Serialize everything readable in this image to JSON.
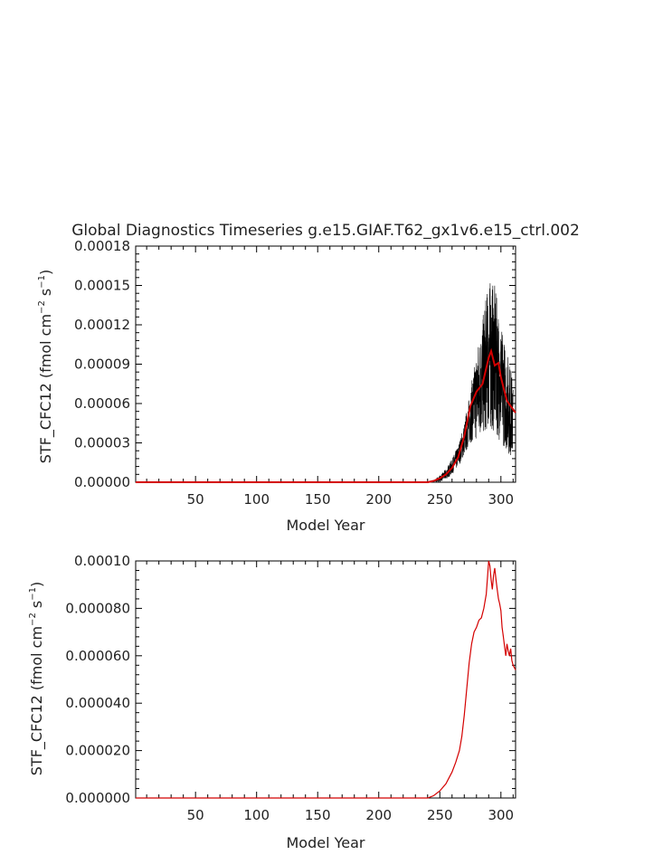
{
  "chart_data": [
    {
      "type": "line",
      "title": "Global Diagnostics Timeseries g.e15.GIAF.T62_gx1v6.e15_ctrl.002",
      "xlabel": "Model Year",
      "ylabel": {
        "base": "STF_CFC12 (fmol cm",
        "exp1": "−2",
        "mid": " s",
        "exp2": "−1",
        "close": ")"
      },
      "xlim": [
        1,
        312
      ],
      "ylim": [
        0,
        0.00018
      ],
      "xticks": [
        50,
        100,
        150,
        200,
        250,
        300
      ],
      "yticks": [
        "0.00000",
        "0.00003",
        "0.00006",
        "0.00009",
        "0.00012",
        "0.00015",
        "0.00018"
      ],
      "ytick_values": [
        0,
        3e-05,
        6e-05,
        9e-05,
        0.00012,
        0.00015,
        0.00018
      ],
      "grid": false,
      "series": [
        {
          "role": "monthly",
          "color": "#000000",
          "band_x": [
            240,
            245,
            250,
            255,
            260,
            265,
            270,
            275,
            280,
            285,
            290,
            295,
            300,
            305,
            310
          ],
          "band_low": [
            0,
            0,
            5e-07,
            2e-06,
            6e-06,
            1.2e-05,
            2e-05,
            3e-05,
            3.2e-05,
            3.5e-05,
            4e-05,
            3.8e-05,
            3e-05,
            2.4e-05,
            1.5e-05
          ],
          "band_high": [
            0,
            1.5e-06,
            5e-06,
            1e-05,
            1.8e-05,
            2.8e-05,
            4.5e-05,
            7e-05,
            0.0001,
            0.000125,
            0.000155,
            0.00015,
            0.00012,
            0.0001,
            8e-05
          ]
        },
        {
          "role": "annual-mean",
          "color": "#d40000",
          "x": [
            1,
            240,
            245,
            250,
            255,
            260,
            265,
            270,
            275,
            280,
            285,
            290,
            292,
            295,
            298,
            300,
            303,
            305,
            308,
            312
          ],
          "y": [
            0,
            0,
            1e-06,
            3e-06,
            6e-06,
            1.1e-05,
            1.9e-05,
            3.5e-05,
            5.8e-05,
            6.9e-05,
            7.5e-05,
            9.5e-05,
            0.0001,
            8.9e-05,
            9.1e-05,
            8e-05,
            6.9e-05,
            6.2e-05,
            5.8e-05,
            5.3e-05
          ]
        }
      ]
    },
    {
      "type": "line",
      "title": "",
      "xlabel": "Model Year",
      "ylabel": {
        "base": "STF_CFC12 (fmol cm",
        "exp1": "−2",
        "mid": " s",
        "exp2": "−1",
        "close": ")"
      },
      "xlim": [
        1,
        312
      ],
      "ylim": [
        0,
        0.0001
      ],
      "xticks": [
        50,
        100,
        150,
        200,
        250,
        300
      ],
      "yticks": [
        "0.000000",
        "0.000020",
        "0.000040",
        "0.000060",
        "0.000080",
        "0.00010"
      ],
      "ytick_values": [
        0,
        2e-05,
        4e-05,
        6e-05,
        8e-05,
        0.0001
      ],
      "grid": false,
      "series": [
        {
          "role": "annual-mean",
          "color": "#d40000",
          "x": [
            1,
            240,
            245,
            250,
            255,
            260,
            263,
            266,
            268,
            270,
            272,
            274,
            276,
            278,
            280,
            282,
            284,
            286,
            288,
            290,
            291,
            292,
            293,
            294,
            295,
            296,
            297,
            298,
            299,
            300,
            301,
            302,
            303,
            304,
            305,
            306,
            307,
            308,
            309,
            310,
            312
          ],
          "y": [
            0,
            0,
            1e-06,
            3e-06,
            6e-06,
            1.1e-05,
            1.5e-05,
            2e-05,
            2.6e-05,
            3.5e-05,
            4.6e-05,
            5.7e-05,
            6.5e-05,
            7e-05,
            7.2e-05,
            7.5e-05,
            7.6e-05,
            8e-05,
            8.6e-05,
            0.0001,
            9.8e-05,
            9.2e-05,
            8.8e-05,
            9.4e-05,
            9.7e-05,
            9.2e-05,
            8.8e-05,
            8.4e-05,
            8.2e-05,
            7.9e-05,
            7.2e-05,
            6.8e-05,
            6.4e-05,
            6e-05,
            6.5e-05,
            6.2e-05,
            6e-05,
            6.3e-05,
            5.8e-05,
            5.6e-05,
            5.4e-05
          ]
        }
      ]
    }
  ]
}
